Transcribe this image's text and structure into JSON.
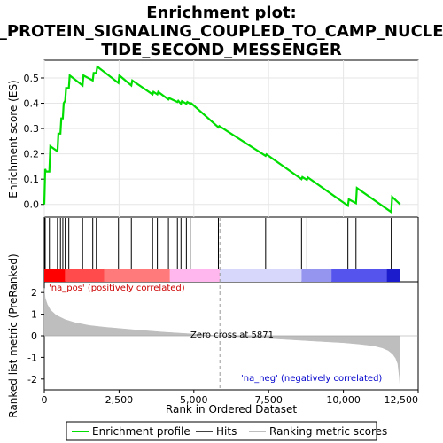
{
  "chart_data": {
    "type": "line",
    "title": "Enrichment plot: G_PROTEIN_SIGNALING_COUPLED_TO_CAMP_NUCLEOTIDE_SECOND_MESSENGER",
    "title_lines": [
      "Enrichment plot:",
      "G_PROTEIN_SIGNALING_COUPLED_TO_CAMP_NUCLEO",
      "TIDE_SECOND_MESSENGER"
    ],
    "xlabel": "Rank in Ordered Dataset",
    "xlim": [
      0,
      12500
    ],
    "x_ticks": [
      0,
      2500,
      5000,
      7500,
      10000,
      12500
    ],
    "x_tick_labels": [
      "0",
      "2,500",
      "5,000",
      "7,500",
      "10,000",
      "12,500"
    ],
    "es_panel": {
      "ylabel": "Enrichment score (ES)",
      "ylim": [
        -0.05,
        0.57
      ],
      "y_ticks": [
        0.0,
        0.1,
        0.2,
        0.3,
        0.4,
        0.5
      ],
      "y_tick_labels": [
        "0.0",
        "0.1",
        "0.2",
        "0.3",
        "0.4",
        "0.5"
      ],
      "series": [
        {
          "name": "Enrichment profile",
          "color": "#00dd00",
          "x": [
            0,
            30,
            60,
            170,
            200,
            440,
            470,
            540,
            570,
            620,
            650,
            700,
            730,
            820,
            850,
            1280,
            1310,
            1620,
            1650,
            1740,
            1770,
            2480,
            2510,
            2910,
            2940,
            3620,
            3650,
            3780,
            3810,
            4150,
            4180,
            4450,
            4480,
            4570,
            4600,
            4750,
            4780,
            4880,
            4910,
            5820,
            5850,
            7400,
            7430,
            8600,
            8630,
            8780,
            8810,
            10150,
            10180,
            10420,
            10450,
            11600,
            11630,
            11900
          ],
          "y": [
            0.0,
            0.14,
            0.13,
            0.13,
            0.23,
            0.21,
            0.28,
            0.28,
            0.34,
            0.34,
            0.4,
            0.41,
            0.46,
            0.46,
            0.51,
            0.47,
            0.51,
            0.49,
            0.52,
            0.52,
            0.545,
            0.48,
            0.51,
            0.47,
            0.49,
            0.435,
            0.445,
            0.435,
            0.445,
            0.415,
            0.42,
            0.405,
            0.41,
            0.398,
            0.408,
            0.398,
            0.405,
            0.398,
            0.4,
            0.305,
            0.31,
            0.192,
            0.198,
            0.1,
            0.108,
            0.097,
            0.107,
            -0.005,
            0.02,
            0.005,
            0.065,
            -0.03,
            0.03,
            0.0
          ]
        }
      ]
    },
    "hits": {
      "name": "Hits",
      "color": "#000000",
      "x": [
        30,
        170,
        440,
        540,
        620,
        700,
        820,
        1280,
        1620,
        1740,
        2480,
        2910,
        3620,
        3780,
        4150,
        4450,
        4570,
        4750,
        4880,
        5820,
        7400,
        8600,
        8780,
        10150,
        10420,
        11600
      ]
    },
    "color_bar": {
      "colors": [
        "#ff0000",
        "#ff4b4b",
        "#ff7a7a",
        "#ffb7ee",
        "#d7d7fb",
        "#9595f0",
        "#5555ee",
        "#1c1ccc"
      ],
      "breaks": [
        0,
        700,
        2000,
        4200,
        5871,
        8600,
        9600,
        11450,
        11900
      ]
    },
    "metric_panel": {
      "ylabel": "Ranked list metric (PreRanked)",
      "ylim": [
        -2.5,
        2.5
      ],
      "y_ticks": [
        -2,
        -1,
        0,
        1,
        2
      ],
      "y_tick_labels": [
        "-2",
        "-1",
        "0",
        "1",
        "2"
      ],
      "series": [
        {
          "name": "Ranking metric scores",
          "color": "#bebebe",
          "x": [
            0,
            30,
            100,
            200,
            400,
            700,
            1000,
            1500,
            2000,
            3000,
            4000,
            5000,
            5871,
            7000,
            8000,
            9000,
            10000,
            10500,
            11000,
            11300,
            11500,
            11650,
            11750,
            11820,
            11870,
            11900
          ],
          "y": [
            2.2,
            1.75,
            1.45,
            1.2,
            0.95,
            0.75,
            0.62,
            0.48,
            0.4,
            0.28,
            0.17,
            0.08,
            0.0,
            -0.08,
            -0.16,
            -0.24,
            -0.32,
            -0.38,
            -0.46,
            -0.56,
            -0.68,
            -0.85,
            -1.05,
            -1.3,
            -1.9,
            -2.5
          ]
        }
      ],
      "zero_cross_label": "Zero cross at 5871",
      "zero_cross": 5871,
      "pos_label": "'na_pos' (positively correlated)",
      "neg_label": "'na_neg' (negatively correlated)"
    },
    "legend": {
      "placement": "bottom",
      "items": [
        {
          "label": "Enrichment profile",
          "color": "#00dd00"
        },
        {
          "label": "Hits",
          "color": "#000000"
        },
        {
          "label": "Ranking metric scores",
          "color": "#bebebe"
        }
      ]
    }
  }
}
